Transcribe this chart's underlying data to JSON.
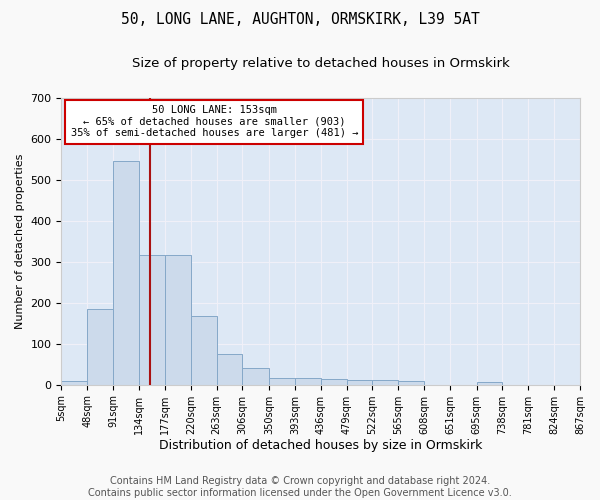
{
  "title": "50, LONG LANE, AUGHTON, ORMSKIRK, L39 5AT",
  "subtitle": "Size of property relative to detached houses in Ormskirk",
  "xlabel": "Distribution of detached houses by size in Ormskirk",
  "ylabel": "Number of detached properties",
  "bin_edges": [
    5,
    48,
    91,
    134,
    177,
    220,
    263,
    306,
    350,
    393,
    436,
    479,
    522,
    565,
    608,
    651,
    695,
    738,
    781,
    824,
    867
  ],
  "bar_heights": [
    9,
    186,
    547,
    316,
    316,
    168,
    76,
    40,
    17,
    16,
    14,
    11,
    11,
    9,
    0,
    0,
    7,
    0,
    0,
    0
  ],
  "bar_color": "#ccdaeb",
  "bar_edge_color": "#85a8c8",
  "vline_x": 153,
  "vline_color": "#aa1111",
  "annotation_line1": "50 LONG LANE: 153sqm",
  "annotation_line2": "← 65% of detached houses are smaller (903)",
  "annotation_line3": "35% of semi-detached houses are larger (481) →",
  "annotation_box_facecolor": "#ffffff",
  "annotation_box_edgecolor": "#cc0000",
  "ylim": [
    0,
    700
  ],
  "yticks": [
    0,
    100,
    200,
    300,
    400,
    500,
    600,
    700
  ],
  "background_color": "#dde8f5",
  "grid_color": "#f0f0f8",
  "title_fontsize": 10.5,
  "subtitle_fontsize": 9.5,
  "ylabel_fontsize": 8,
  "xlabel_fontsize": 9,
  "tick_fontsize": 7,
  "ytick_fontsize": 8,
  "footer_text": "Contains HM Land Registry data © Crown copyright and database right 2024.\nContains public sector information licensed under the Open Government Licence v3.0.",
  "footer_fontsize": 7,
  "fig_facecolor": "#f9f9f9"
}
